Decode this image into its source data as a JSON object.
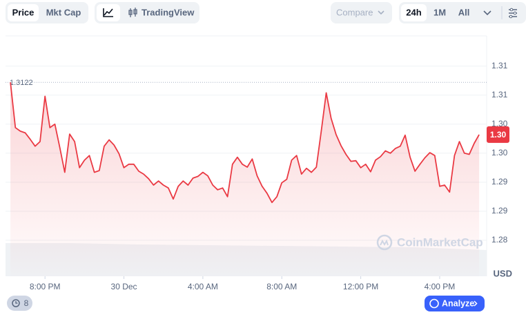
{
  "chart_data": {
    "type": "line",
    "color": "#ea3943",
    "x": [
      -5.75,
      -5.5,
      -5.25,
      -5,
      -4.75,
      -4.5,
      -4.25,
      -4,
      -3.75,
      -3.5,
      -3.25,
      -3,
      -2.75,
      -2.5,
      -2.25,
      -2,
      -1.75,
      -1.5,
      -1.25,
      -1,
      -0.75,
      -0.5,
      -0.25,
      0,
      0.25,
      0.5,
      0.75,
      1,
      1.25,
      1.5,
      1.75,
      2,
      2.25,
      2.5,
      2.75,
      3,
      3.25,
      3.5,
      3.75,
      4,
      4.25,
      4.5,
      4.75,
      5,
      5.25,
      5.5,
      5.75,
      6,
      6.25,
      6.5,
      6.75,
      7,
      7.25,
      7.5,
      7.75,
      8,
      8.25,
      8.5,
      8.75,
      9,
      9.25,
      9.5,
      9.75,
      10,
      10.25,
      10.5,
      10.75,
      11,
      11.25,
      11.5,
      11.75,
      12,
      12.25,
      12.5,
      12.75,
      13,
      13.25,
      13.5,
      13.75,
      14,
      14.25,
      14.5,
      14.75,
      15,
      15.25,
      15.5,
      15.75,
      16,
      16.25,
      16.5,
      16.75,
      17,
      17.25,
      17.5,
      17.75,
      18
    ],
    "values": [
      1.3122,
      1.3044,
      1.3038,
      1.3035,
      1.3024,
      1.3012,
      1.302,
      1.3098,
      1.3044,
      1.305,
      1.301,
      1.2967,
      1.3033,
      1.302,
      1.2975,
      1.2988,
      1.2996,
      1.2967,
      1.297,
      1.3012,
      1.3023,
      1.3014,
      1.2999,
      1.2975,
      1.2981,
      1.2981,
      1.2969,
      1.2964,
      1.2956,
      1.2945,
      1.2952,
      1.2945,
      1.294,
      1.2921,
      1.2943,
      1.2952,
      1.2945,
      1.2957,
      1.296,
      1.2967,
      1.2961,
      1.2945,
      1.2937,
      1.294,
      1.2925,
      1.2981,
      1.2993,
      1.2981,
      1.2976,
      1.299,
      1.2961,
      1.2943,
      1.2931,
      1.2915,
      1.2925,
      1.2949,
      1.2955,
      1.2988,
      1.2996,
      1.2964,
      1.2974,
      1.2967,
      1.2976,
      1.3038,
      1.3104,
      1.306,
      1.3032,
      1.3013,
      1.2998,
      1.2986,
      1.2987,
      1.2975,
      1.2981,
      1.2968,
      1.2988,
      1.2994,
      1.3004,
      1.3,
      1.3008,
      1.3012,
      1.3031,
      1.2993,
      1.2969,
      1.2981,
      1.2992,
      1.3001,
      1.2996,
      1.2943,
      1.2945,
      1.2933,
      1.2996,
      1.302,
      1.3,
      1.2998,
      1.3017,
      1.3032
    ],
    "last_label": "1.30",
    "xlim": [
      -6,
      18.38
    ],
    "xticks": [
      {
        "value": -4,
        "label": "8:00 PM"
      },
      {
        "value": 0,
        "label": "30 Dec"
      },
      {
        "value": 4,
        "label": "4:00 AM"
      },
      {
        "value": 8,
        "label": "8:00 AM"
      },
      {
        "value": 12,
        "label": "12:00 PM"
      },
      {
        "value": 16,
        "label": "4:00 PM"
      }
    ],
    "ylim": [
      1.2788,
      1.3202
    ],
    "yticks": [
      {
        "value": 1.315,
        "label": "1.31"
      },
      1.31,
      {
        "value": 1.305,
        "label": "1.30"
      },
      {
        "value": 1.3,
        "label": "1.30"
      },
      {
        "value": 1.295,
        "label": "1.29"
      },
      1.29,
      {
        "value": 1.285,
        "label": "1.28"
      }
    ],
    "y_unit": "USD",
    "grid": true,
    "watermark": "CoinMarketCap"
  },
  "toolbar": {
    "price": "Price",
    "mkt_cap": "Mkt Cap",
    "tradingview": "TradingView",
    "compare": "Compare",
    "range_24h": "24h",
    "range_1m": "1M",
    "range_all": "All"
  },
  "footer": {
    "history_count": "8",
    "analyze": "Analyze"
  }
}
